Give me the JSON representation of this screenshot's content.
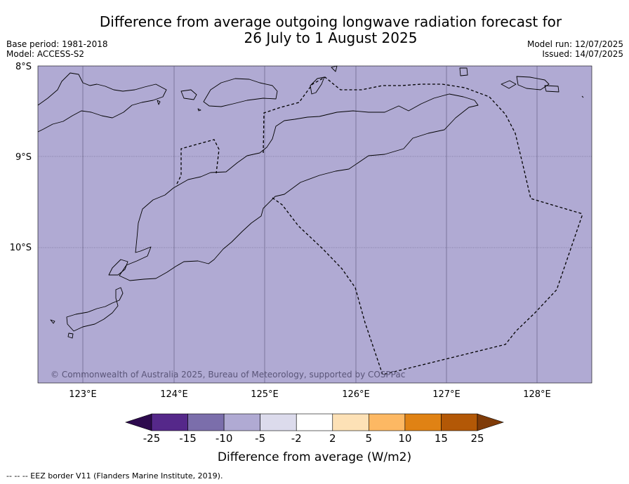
{
  "title_line1": "Difference from average outgoing longwave radiation forecast for",
  "title_line2": "26 July to 1 August 2025",
  "base_period": "Base period: 1981-2018",
  "model": "Model: ACCESS-S2",
  "model_run": "Model run: 12/07/2025",
  "issued": "Issued: 14/07/2025",
  "copyright": "© Commonwealth of Australia 2025, Bureau of Meteorology, supported by COSPPac",
  "lat_labels": [
    "8°S",
    "9°S",
    "10°S"
  ],
  "lon_labels": [
    "123°E",
    "124°E",
    "125°E",
    "126°E",
    "127°E",
    "128°E"
  ],
  "map_fill_color": "#b0aad3",
  "colorbar": {
    "ticks": [
      "-25",
      "-15",
      "-10",
      "-5",
      "-2",
      "2",
      "5",
      "10",
      "15",
      "25"
    ],
    "colors": [
      "#2d0a4e",
      "#55288a",
      "#7b6eab",
      "#b0aad3",
      "#dcdbec",
      "#ffffff",
      "#fde1b6",
      "#fdb863",
      "#e08214",
      "#b35806",
      "#7f3b08"
    ],
    "label": "Difference from average (W/m2)"
  },
  "footer": "--  --  -- EEZ border V11 (Flanders Marine Institute, 2019)."
}
